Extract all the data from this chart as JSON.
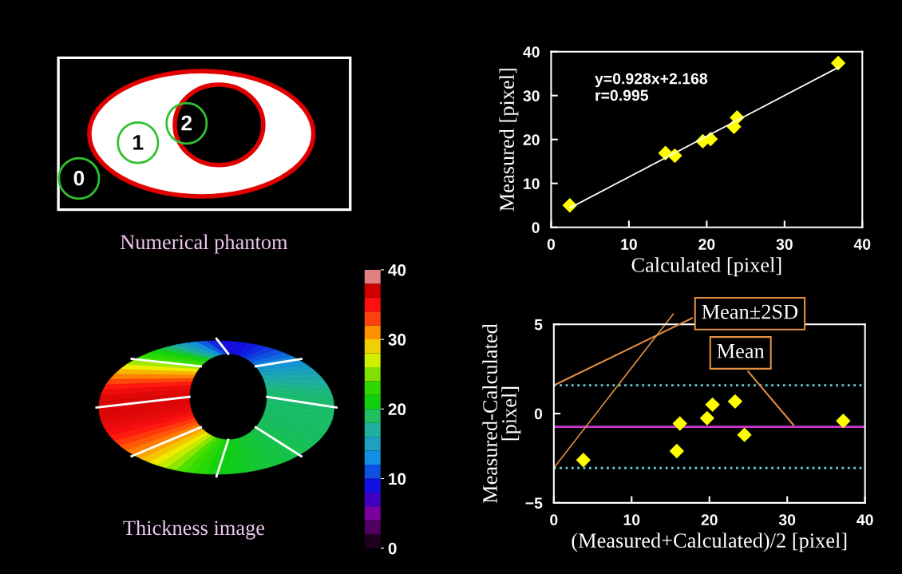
{
  "chart_data": [
    {
      "type": "other",
      "title": "Numerical phantom",
      "annotations": [
        "0",
        "1",
        "2"
      ]
    },
    {
      "type": "scatter",
      "xlabel": "Calculated [pixel]",
      "ylabel": "Measured [pixel]",
      "xlim": [
        0,
        40
      ],
      "ylim": [
        0,
        40
      ],
      "xticks": [
        0,
        10,
        20,
        30,
        40
      ],
      "yticks": [
        0,
        10,
        20,
        30,
        40
      ],
      "grid": false,
      "legend": false,
      "marker": "diamond",
      "annotations": [
        "y=0.928x+2.168",
        "r=0.995"
      ],
      "series": [
        {
          "color": "#ffff00",
          "x": [
            2.4,
            14.7,
            15.9,
            19.5,
            20.5,
            23.5,
            23.9,
            36.9
          ],
          "values": [
            5.0,
            16.9,
            16.3,
            19.6,
            20.1,
            22.9,
            25.0,
            37.4
          ]
        },
        {
          "type": "line",
          "color": "#ffffff",
          "marker": "none",
          "line_style": "solid",
          "x": [
            2.4,
            36.9
          ],
          "values": [
            4.4,
            36.4
          ]
        }
      ]
    },
    {
      "type": "bar",
      "title": "Thickness image",
      "categories": [
        null
      ],
      "ylim": [
        0,
        40
      ],
      "yticks": [
        0,
        10,
        20,
        30,
        40
      ],
      "tick_labels": "y",
      "stacked": true,
      "series": [
        {
          "color": "#200020",
          "values": [
            2
          ]
        },
        {
          "color": "#500060",
          "values": [
            2
          ]
        },
        {
          "color": "#7a00a0",
          "values": [
            2
          ]
        },
        {
          "color": "#4000c0",
          "values": [
            2
          ]
        },
        {
          "color": "#1010e0",
          "values": [
            2
          ]
        },
        {
          "color": "#1050e0",
          "values": [
            2
          ]
        },
        {
          "color": "#1090e0",
          "values": [
            2
          ]
        },
        {
          "color": "#20a0c0",
          "values": [
            2
          ]
        },
        {
          "color": "#20b0a0",
          "values": [
            2
          ]
        },
        {
          "color": "#20c060",
          "values": [
            2
          ]
        },
        {
          "color": "#10d010",
          "values": [
            2
          ]
        },
        {
          "color": "#30d800",
          "values": [
            2
          ]
        },
        {
          "color": "#80e000",
          "values": [
            2
          ]
        },
        {
          "color": "#d0f000",
          "values": [
            2
          ]
        },
        {
          "color": "#f0d000",
          "values": [
            2
          ]
        },
        {
          "color": "#ff9000",
          "values": [
            2
          ]
        },
        {
          "color": "#ff4010",
          "values": [
            2
          ]
        },
        {
          "color": "#ff1010",
          "values": [
            2
          ]
        },
        {
          "color": "#d00000",
          "values": [
            2
          ]
        },
        {
          "color": "#e08080",
          "values": [
            2
          ]
        }
      ]
    },
    {
      "type": "scatter",
      "xlabel": "(Measured+Calculated)/2 [pixel]",
      "ylabel": "Measured-Calculated\n[pixel]",
      "xlim": [
        0,
        40
      ],
      "ylim": [
        -5,
        5
      ],
      "xticks": [
        0,
        10,
        20,
        30,
        40
      ],
      "yticks": [
        {
          "value": -5,
          "label": "−5"
        },
        0,
        5
      ],
      "grid": false,
      "legend": false,
      "marker": "diamond",
      "series": [
        {
          "color": "#ffff00",
          "x": [
            3.8,
            15.8,
            16.2,
            19.7,
            20.4,
            23.3,
            24.5,
            37.2
          ],
          "values": [
            -2.6,
            -2.1,
            -0.56,
            -0.26,
            0.5,
            0.68,
            -1.19,
            -0.41
          ]
        }
      ],
      "annotations": [
        {
          "text": "Mean±2SD",
          "x": 0,
          "y": 1.58
        },
        {
          "text": "Mean",
          "x": 31,
          "y": -0.74
        }
      ],
      "ref_lines": [
        {
          "axis": "y",
          "value": 1.58,
          "color": "#66cccc",
          "line_style": "dotted"
        },
        {
          "axis": "y",
          "value": -3.05,
          "color": "#66cccc",
          "line_style": "dotted"
        },
        {
          "axis": "y",
          "value": -0.74,
          "color": "#cc33cc",
          "line_style": "solid"
        }
      ]
    }
  ]
}
